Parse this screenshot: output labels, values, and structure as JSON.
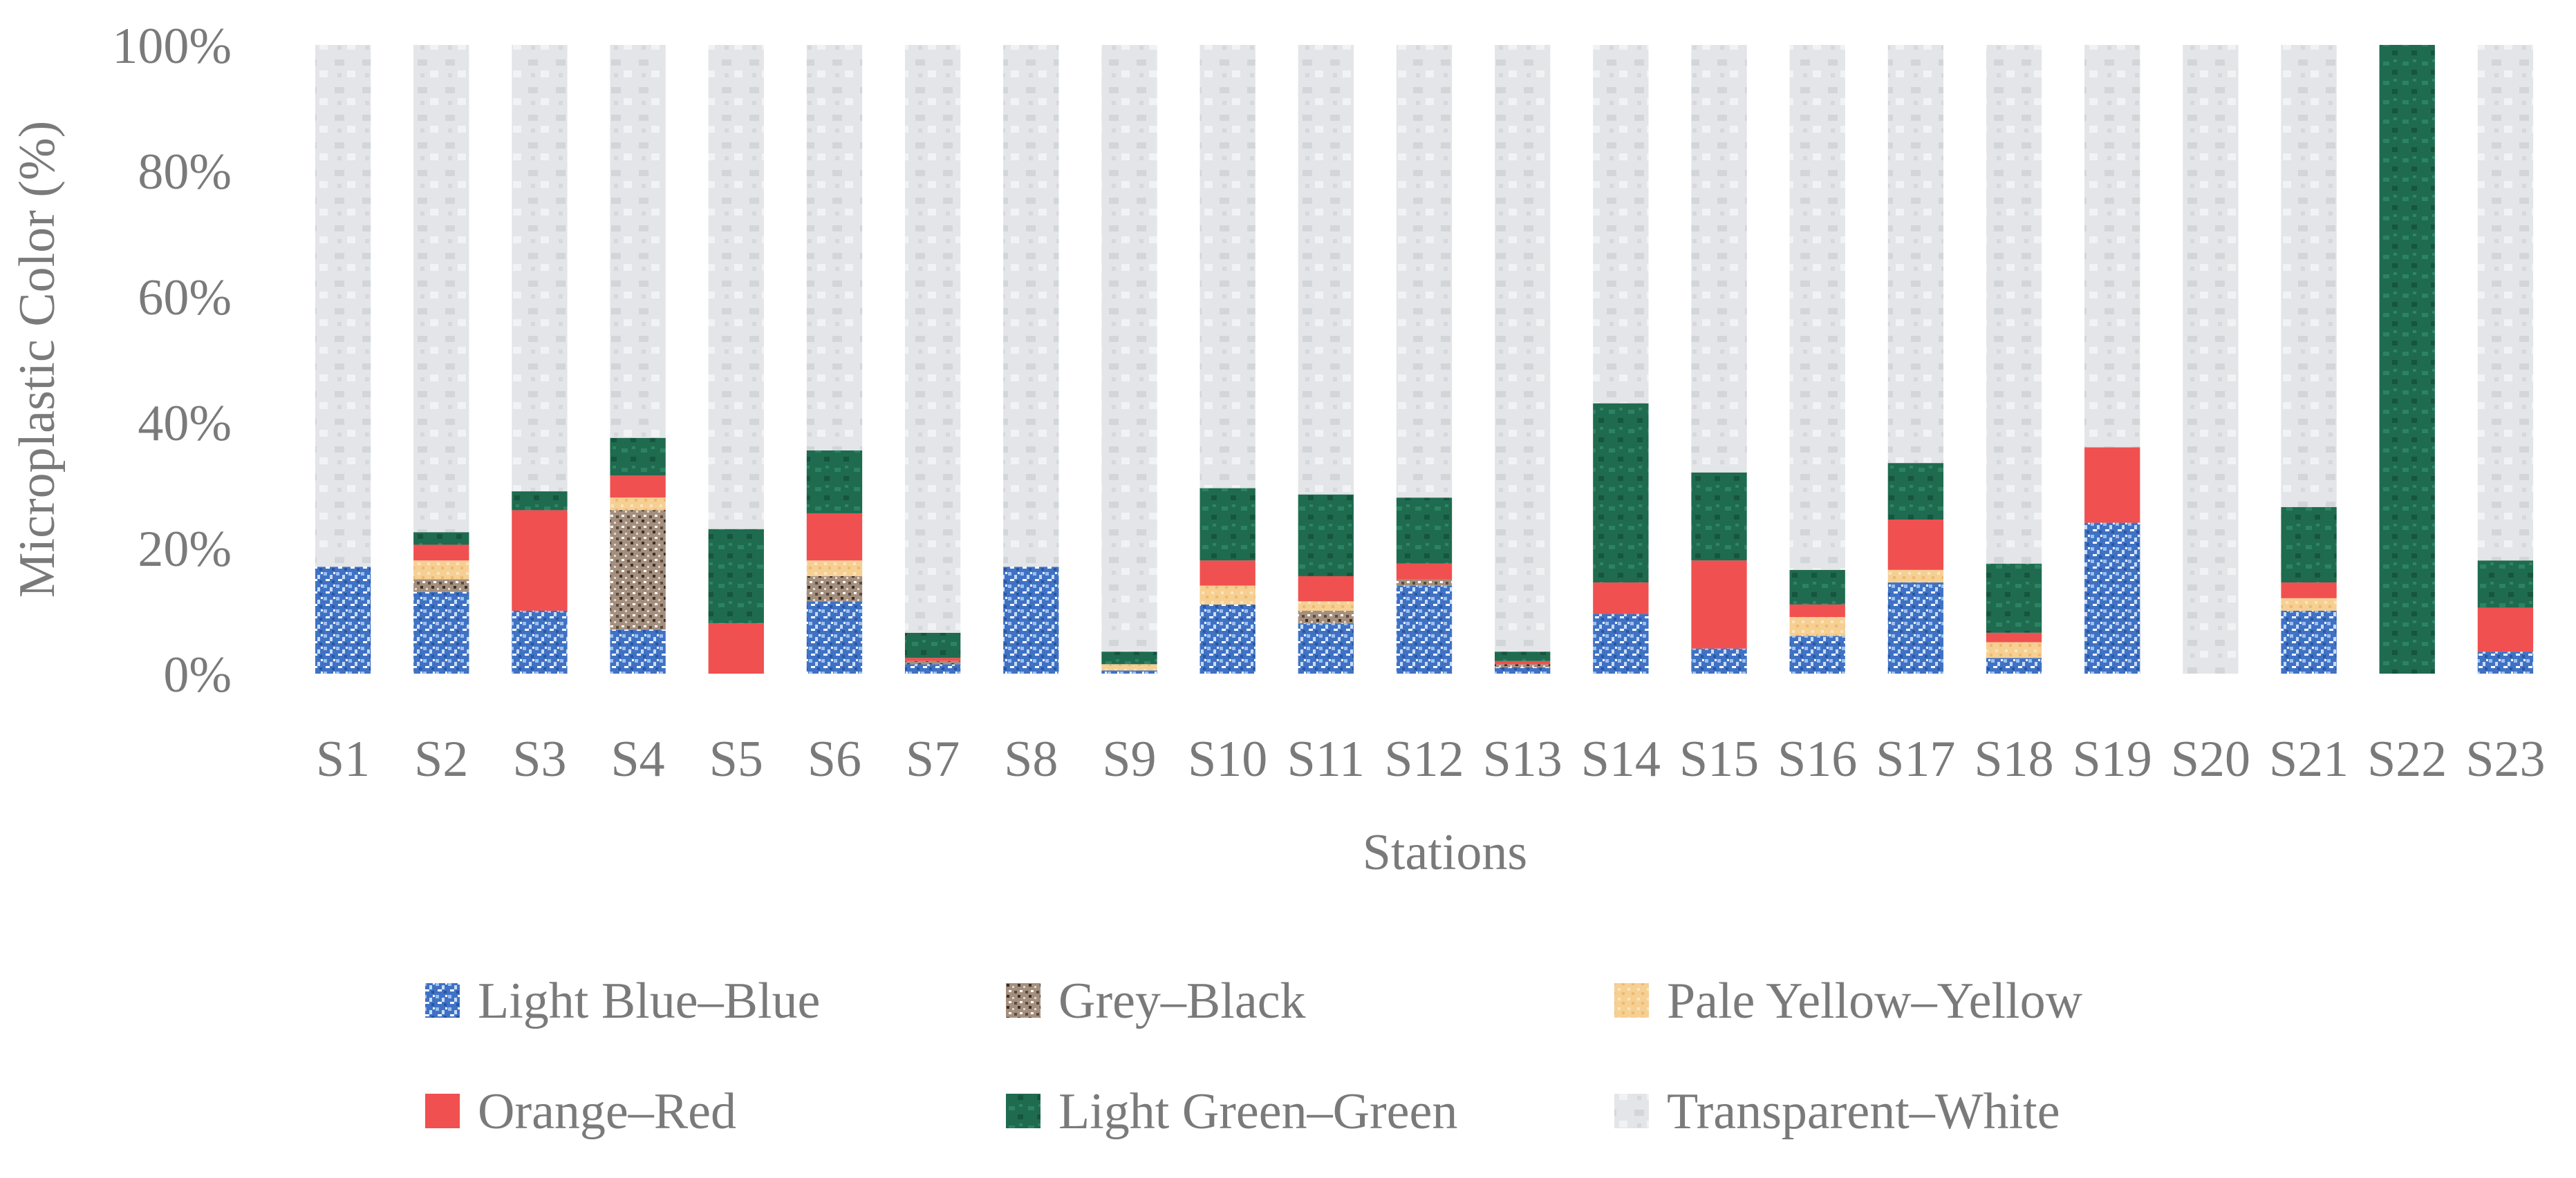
{
  "chart_data": {
    "type": "bar",
    "stacked": true,
    "categories": [
      "S1",
      "S2",
      "S3",
      "S4",
      "S5",
      "S6",
      "S7",
      "S8",
      "S9",
      "S10",
      "S11",
      "S12",
      "S13",
      "S14",
      "S15",
      "S16",
      "S17",
      "S18",
      "S19",
      "S20",
      "S21",
      "S22",
      "S23"
    ],
    "series": [
      {
        "name": "Light Blue–Blue",
        "color": "#4a7fd0",
        "values": [
          17,
          13,
          10,
          7,
          0,
          11.5,
          1.5,
          17,
          0.5,
          11,
          8,
          14,
          1,
          9.5,
          4,
          6,
          14.5,
          2.5,
          24,
          0,
          10,
          0,
          3.5
        ]
      },
      {
        "name": "Grey–Black",
        "color": "#9a8474",
        "values": [
          0,
          2,
          0,
          19,
          0,
          4,
          0.5,
          0,
          0,
          0,
          2,
          1,
          0.5,
          0,
          0,
          0,
          0,
          0,
          0,
          0,
          0,
          0,
          0
        ]
      },
      {
        "name": "Pale Yellow–Yellow",
        "color": "#f4c98a",
        "values": [
          0,
          3,
          0,
          2,
          0,
          2.5,
          0,
          0,
          1,
          3,
          1.5,
          0,
          0,
          0,
          0,
          3,
          2,
          2.5,
          0,
          0,
          2,
          0,
          0
        ]
      },
      {
        "name": "Orange–Red",
        "color": "#f05050",
        "values": [
          0,
          2.5,
          16,
          3.5,
          8,
          7.5,
          0.5,
          0,
          0,
          4,
          4,
          2.5,
          0.5,
          5,
          14,
          2,
          8,
          1.5,
          12,
          0,
          2.5,
          0,
          7
        ]
      },
      {
        "name": "Light Green–Green",
        "color": "#1f6b4f",
        "values": [
          0,
          2,
          3,
          6,
          15,
          10,
          4,
          0,
          2,
          11.5,
          13,
          10.5,
          1.5,
          28.5,
          14,
          5.5,
          9,
          11,
          0,
          0,
          12,
          100,
          7.5
        ]
      },
      {
        "name": "Transparent–White",
        "color": "#dcdfe2",
        "values": [
          83,
          77.5,
          71,
          62.5,
          77,
          64.5,
          93.5,
          83,
          96.5,
          70.5,
          71.5,
          72,
          96.5,
          57,
          68,
          83.5,
          66.5,
          82.5,
          64,
          100,
          73.5,
          0,
          82
        ]
      }
    ],
    "y_ticks": [
      "0%",
      "20%",
      "40%",
      "60%",
      "80%",
      "100%"
    ],
    "ylim": [
      0,
      100
    ],
    "ylabel": "Microplastic Color (%)",
    "xlabel": "Stations",
    "legend_position": "bottom",
    "grid": false
  }
}
